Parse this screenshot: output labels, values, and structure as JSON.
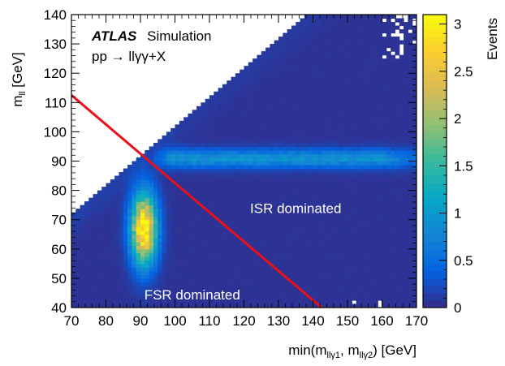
{
  "chart_data": {
    "type": "heatmap",
    "experiment": "ATLAS",
    "experiment_label": "Simulation",
    "process_label": "pp → llγγ+X",
    "x_axis": {
      "label_prefix": "min(m",
      "label_sub1": "llγ1",
      "label_sep": ", m",
      "label_sub2": "llγ2",
      "label_suffix": ") [GeV]",
      "range": [
        70,
        170
      ],
      "ticks": [
        "70",
        "80",
        "90",
        "100",
        "110",
        "120",
        "130",
        "140",
        "150",
        "160",
        "170"
      ]
    },
    "y_axis": {
      "label_prefix": "m",
      "label_sub": "ll",
      "label_suffix": " [GeV]",
      "range": [
        40,
        140
      ],
      "ticks": [
        "40",
        "50",
        "60",
        "70",
        "80",
        "90",
        "100",
        "110",
        "120",
        "130",
        "140"
      ]
    },
    "z_axis": {
      "label": "Events",
      "range": [
        0,
        3.1
      ],
      "ticks": [
        "0",
        "0.5",
        "1",
        "1.5",
        "2",
        "2.5",
        "3"
      ]
    },
    "regions": [
      {
        "label": "ISR dominated",
        "x": 135,
        "y": 74
      },
      {
        "label": "FSR dominated",
        "x": 105,
        "y": 44.5
      }
    ],
    "separator_line": {
      "x1": 70,
      "y1": 112.5,
      "x2": 142.5,
      "y2": 40,
      "color": "#e8101a"
    },
    "features": {
      "fsr_peak": {
        "x": 91,
        "y": 67,
        "sigma_x": 2.6,
        "sigma_y": 8.5,
        "peak_events": 3.05
      },
      "isr_band": {
        "y": 91,
        "sigma_y": 2.2,
        "x_range": [
          95,
          170
        ],
        "events": 0.85
      },
      "background_events": 0.06,
      "empty_region": "above the kinematic edge m_ll ≈ min(m_llγ) (white, no events)"
    },
    "colormap": [
      "#352a87",
      "#0363e1",
      "#1485d4",
      "#06a7c6",
      "#38b99e",
      "#92bf73",
      "#d9ba56",
      "#fcce2e",
      "#f9fb0e"
    ]
  }
}
